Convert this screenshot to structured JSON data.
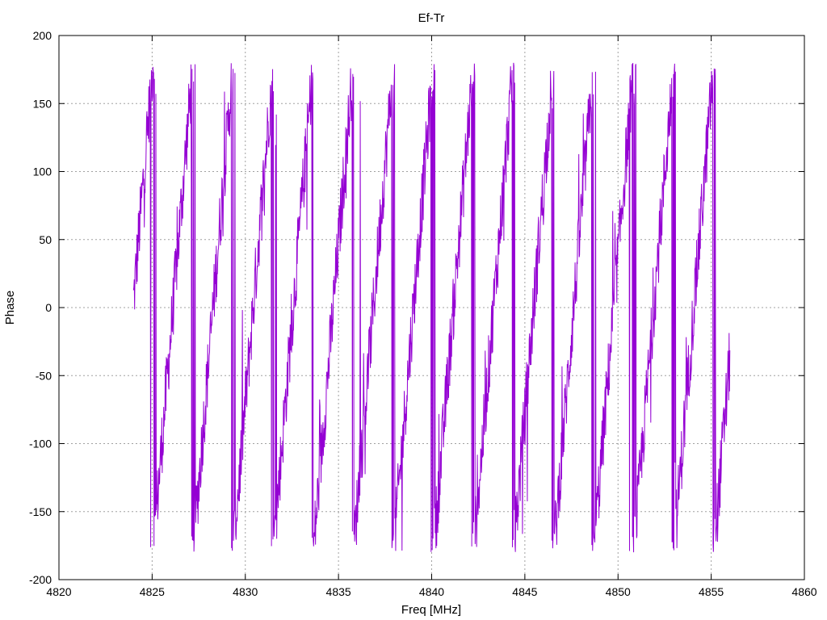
{
  "chart_data": {
    "type": "line",
    "title": "Ef-Tr",
    "xlabel": "Freq [MHz]",
    "ylabel": "Phase",
    "xlim": [
      4820,
      4860
    ],
    "ylim": [
      -200,
      200
    ],
    "x_ticks": [
      "4820",
      "4825",
      "4830",
      "4835",
      "4840",
      "4845",
      "4850",
      "4855",
      "4860"
    ],
    "y_ticks": [
      "200",
      "150",
      "100",
      "50",
      "0",
      "-50",
      "-100",
      "-150",
      "-200"
    ],
    "x_tick_values": [
      4820,
      4825,
      4830,
      4835,
      4840,
      4845,
      4850,
      4855,
      4860
    ],
    "y_tick_values": [
      200,
      150,
      100,
      50,
      0,
      -50,
      -100,
      -150,
      -200
    ],
    "grid": true,
    "line_color": "#9400d3",
    "series": [
      {
        "x_start": 4824.0,
        "x_end": 4856.0,
        "phase_start": 5,
        "wrap_period_mhz": 2.15,
        "noise_amplitude_deg": 25,
        "points": 1600
      }
    ]
  }
}
